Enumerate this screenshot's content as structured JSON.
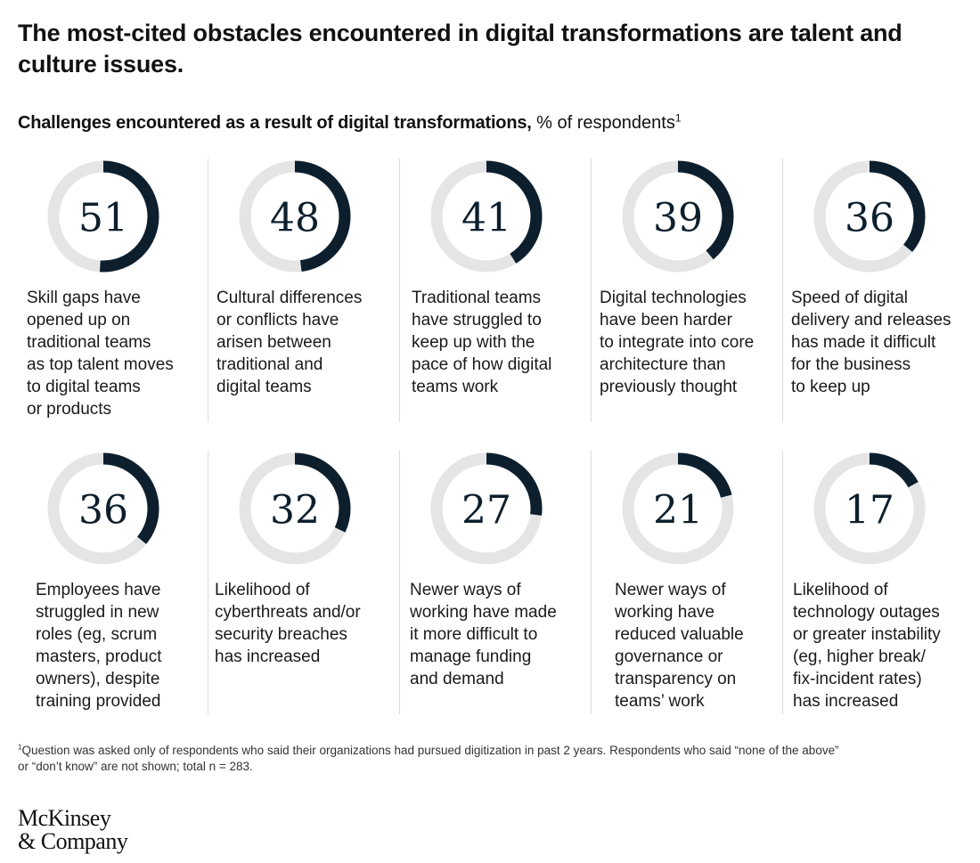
{
  "title": "The most-cited obstacles encountered in digital transformations are talent and culture issues.",
  "subtitle": {
    "bold": "Challenges encountered as a result of digital transformations,",
    "rest": " % of respondents",
    "note_marker": "1"
  },
  "colors": {
    "arc": "#0d1f2d",
    "track": "#e5e5e5"
  },
  "chart_data": {
    "type": "pie",
    "max": 100,
    "items": [
      {
        "value": 51,
        "label_lines": [
          "Skill gaps have",
          "opened up on",
          "traditional teams",
          "as top talent moves",
          "to digital teams",
          "or products"
        ]
      },
      {
        "value": 48,
        "label_lines": [
          "Cultural differences",
          "or conflicts have",
          "arisen between",
          "traditional and",
          "digital teams"
        ]
      },
      {
        "value": 41,
        "label_lines": [
          "Traditional teams",
          "have struggled to",
          "keep up with the",
          "pace of how digital",
          "teams work"
        ]
      },
      {
        "value": 39,
        "label_lines": [
          "Digital technologies",
          "have been harder",
          "to integrate into core",
          "architecture than",
          "previously thought"
        ]
      },
      {
        "value": 36,
        "label_lines": [
          "Speed of digital",
          "delivery and releases",
          "has made it difficult",
          "for the business",
          "to keep up"
        ]
      },
      {
        "value": 36,
        "label_lines": [
          "Employees have",
          "struggled in new",
          "roles (eg, scrum",
          "masters, product",
          "owners), despite",
          "training provided"
        ]
      },
      {
        "value": 32,
        "label_lines": [
          "Likelihood of",
          "cyberthreats and/or",
          "security breaches",
          "has increased"
        ]
      },
      {
        "value": 27,
        "label_lines": [
          "Newer ways of",
          "working have made",
          "it more difficult to",
          "manage funding",
          "and demand"
        ]
      },
      {
        "value": 21,
        "label_lines": [
          "Newer ways of",
          "working have",
          "reduced valuable",
          "governance or",
          "transparency on",
          "teams’ work"
        ]
      },
      {
        "value": 17,
        "label_lines": [
          "Likelihood of",
          "technology outages",
          "or greater instability",
          "(eg, higher break/",
          "fix-incident rates)",
          "has increased"
        ]
      }
    ]
  },
  "footnote": {
    "marker": "1",
    "lines": [
      "Question was asked only of respondents who said their organizations had pursued digitization in past 2 years. Respondents who said “none of the above”",
      " or “don’t know” are not shown; total n = 283."
    ]
  },
  "logo": {
    "line1": "McKinsey",
    "line2": "& Company"
  }
}
